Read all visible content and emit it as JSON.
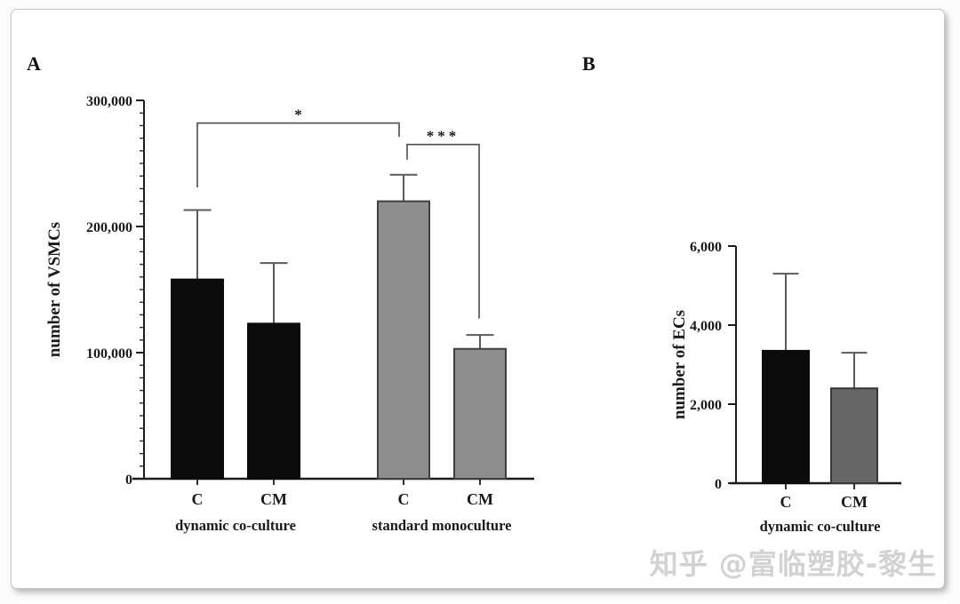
{
  "figure": {
    "panels": [
      {
        "letter": "A"
      },
      {
        "letter": "B"
      }
    ]
  },
  "watermark": {
    "text": "知乎 @富临塑胶-黎生",
    "color": "#d2d2d2"
  },
  "chart_data": [
    {
      "type": "bar",
      "panel": "A",
      "title": "",
      "xlabel": "",
      "ylabel": "number of VSMCs",
      "categories": [
        "C",
        "CM",
        "C",
        "CM"
      ],
      "values": [
        158000,
        123000,
        220000,
        103000
      ],
      "errors_upper": [
        55000,
        48000,
        21000,
        11000
      ],
      "ylim": [
        0,
        300000
      ],
      "yticks": [
        0,
        100000,
        200000,
        300000
      ],
      "ytick_labels": [
        "0",
        "100,000",
        "200,000",
        "300,000"
      ],
      "minor_tick_step": 10000,
      "grid": false,
      "legend": false,
      "bar_fills": [
        "#0b0b0b",
        "#0b0b0b",
        "#8e8e8e",
        "#8e8e8e"
      ],
      "bar_strokes": [
        "#0b0b0b",
        "#0b0b0b",
        "#3f3f3f",
        "#3f3f3f"
      ],
      "groups": [
        {
          "label": "dynamic co-culture",
          "bars": [
            0,
            1
          ]
        },
        {
          "label": "standard monoculture",
          "bars": [
            2,
            3
          ]
        }
      ],
      "significance": [
        {
          "bars": [
            0,
            2
          ],
          "label": "*",
          "line_y": 282000,
          "leg_bottoms": [
            231000,
            271000
          ]
        },
        {
          "bars": [
            2,
            3
          ],
          "label": "***",
          "line_y": 265000,
          "leg_bottoms": [
            253000,
            127000
          ]
        }
      ]
    },
    {
      "type": "bar",
      "panel": "B",
      "title": "",
      "xlabel": "",
      "ylabel": "number of ECs",
      "categories": [
        "C",
        "CM"
      ],
      "values": [
        3350,
        2400
      ],
      "errors_upper": [
        1950,
        900
      ],
      "ylim": [
        0,
        6000
      ],
      "yticks": [
        0,
        2000,
        4000,
        6000
      ],
      "ytick_labels": [
        "0",
        "2,000",
        "4,000",
        "6,000"
      ],
      "minor_tick_step": 0,
      "grid": false,
      "legend": false,
      "bar_fills": [
        "#0b0b0b",
        "#666666"
      ],
      "bar_strokes": [
        "#0b0b0b",
        "#383838"
      ],
      "groups": [
        {
          "label": "dynamic co-culture",
          "bars": [
            0,
            1
          ]
        }
      ],
      "significance": []
    }
  ]
}
